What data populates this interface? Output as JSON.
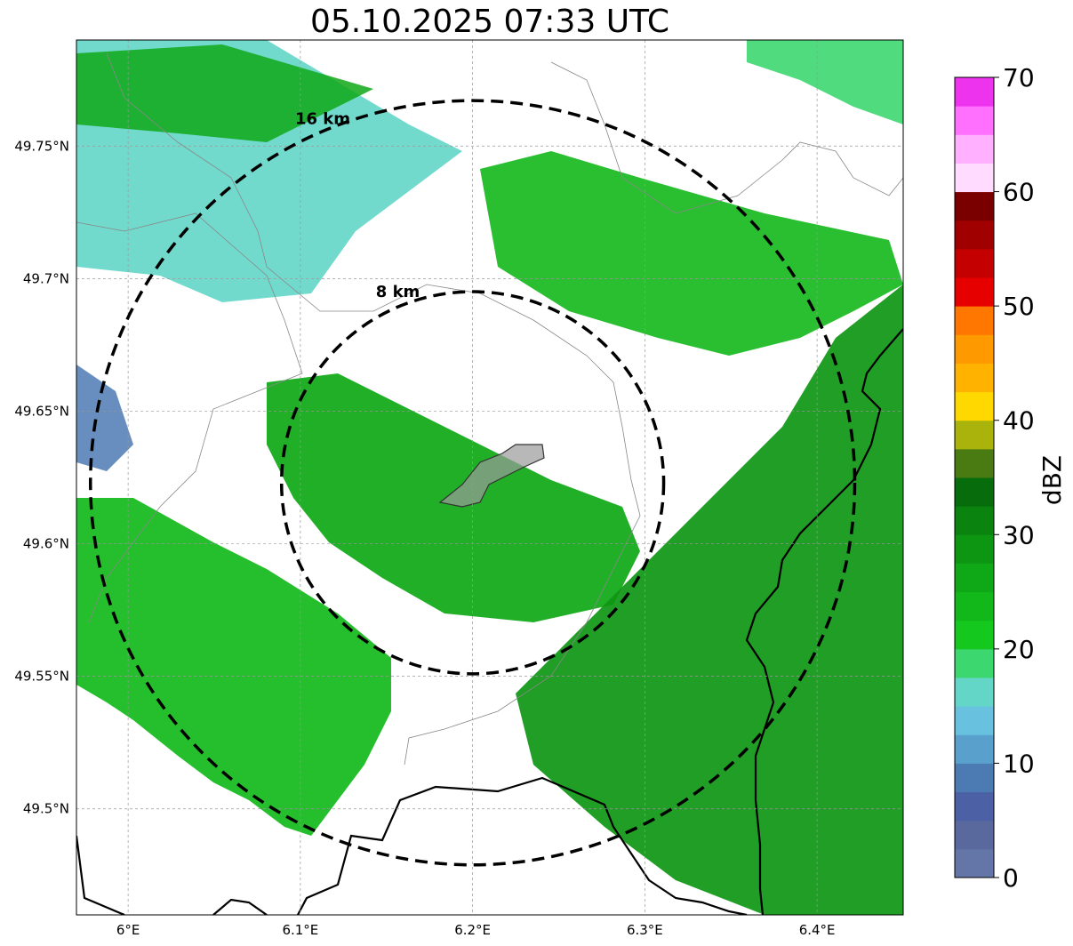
{
  "title": "05.10.2025 07:33 UTC",
  "map": {
    "lon_range": [
      5.97,
      6.45
    ],
    "lat_range": [
      49.46,
      49.79
    ],
    "x_ticks": [
      {
        "value": 6.0,
        "label": "6°E"
      },
      {
        "value": 6.1,
        "label": "6.1°E"
      },
      {
        "value": 6.2,
        "label": "6.2°E"
      },
      {
        "value": 6.3,
        "label": "6.3°E"
      },
      {
        "value": 6.4,
        "label": "6.4°E"
      }
    ],
    "y_ticks": [
      {
        "value": 49.5,
        "label": "49.5°N"
      },
      {
        "value": 49.55,
        "label": "49.55°N"
      },
      {
        "value": 49.6,
        "label": "49.6°N"
      },
      {
        "value": 49.65,
        "label": "49.65°N"
      },
      {
        "value": 49.7,
        "label": "49.7°N"
      },
      {
        "value": 49.75,
        "label": "49.75°N"
      }
    ],
    "grid": true,
    "range_rings": [
      {
        "label": "8 km",
        "center": [
          6.2,
          49.623
        ],
        "radius_km": 8
      },
      {
        "label": "16 km",
        "center": [
          6.2,
          49.623
        ],
        "radius_km": 16
      }
    ],
    "radar_bands": [
      {
        "label": "southwest band",
        "intensity_dbz": 25
      },
      {
        "label": "central band",
        "intensity_dbz": 27
      },
      {
        "label": "northwest band",
        "intensity_dbz": 18
      },
      {
        "label": "northeast band",
        "intensity_dbz": 22
      },
      {
        "label": "southeast band",
        "intensity_dbz": 28
      }
    ]
  },
  "colorbar": {
    "label": "dBZ",
    "ticks": [
      {
        "value": 0,
        "label": "0"
      },
      {
        "value": 10,
        "label": "10"
      },
      {
        "value": 20,
        "label": "20"
      },
      {
        "value": 30,
        "label": "30"
      },
      {
        "value": 40,
        "label": "40"
      },
      {
        "value": 50,
        "label": "50"
      },
      {
        "value": 60,
        "label": "60"
      },
      {
        "value": 70,
        "label": "70"
      }
    ],
    "min": 0,
    "max": 70,
    "colors": [
      "#6475a8",
      "#59699e",
      "#4c60a6",
      "#4c7ab3",
      "#5aa0cc",
      "#68c1de",
      "#63d6c8",
      "#3dd770",
      "#14c81e",
      "#12b81a",
      "#0fa816",
      "#0d9612",
      "#0a840f",
      "#076c0c",
      "#4a7a12",
      "#aab30c",
      "#ffd800",
      "#ffb300",
      "#ff9900",
      "#ff7700",
      "#e60000",
      "#c40000",
      "#a00000",
      "#7a0000",
      "#ffdcff",
      "#ffb0ff",
      "#ff70ff",
      "#ee33ee"
    ]
  }
}
